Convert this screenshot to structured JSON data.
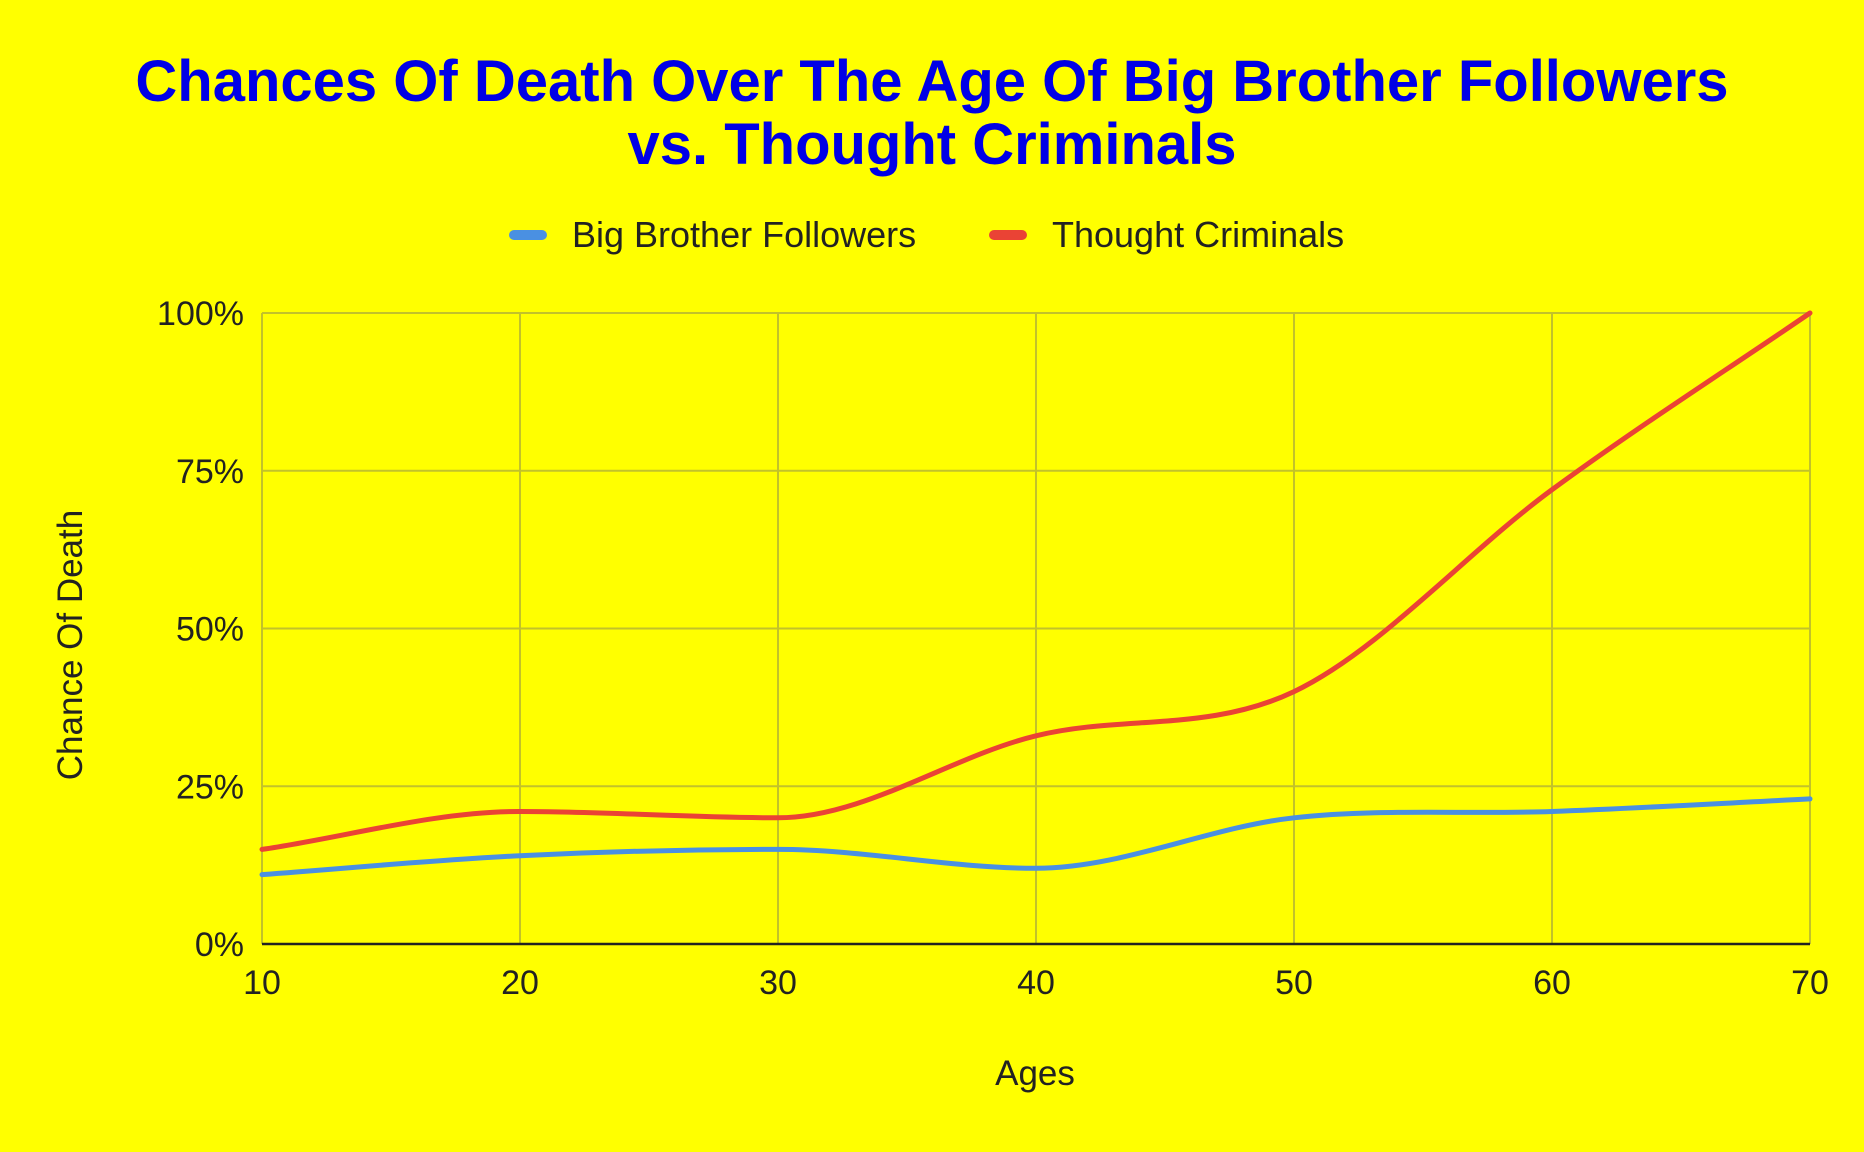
{
  "colors": {
    "background": "#ffff00",
    "title": "#0000e6",
    "text": "#222222",
    "grid": "#c2c22a",
    "axis": "#222222"
  },
  "chart_data": {
    "type": "line",
    "title": [
      "Chances Of Death Over The Age Of Big Brother Followers",
      "vs. Thought Criminals"
    ],
    "xlabel": "Ages",
    "ylabel": "Chance Of Death",
    "x": [
      10,
      20,
      30,
      40,
      50,
      60,
      70
    ],
    "xlim": [
      10,
      70
    ],
    "ylim": [
      0,
      100
    ],
    "x_ticks": [
      10,
      20,
      30,
      40,
      50,
      60,
      70
    ],
    "y_ticks": [
      0,
      25,
      50,
      75,
      100
    ],
    "y_tick_labels": [
      "0%",
      "25%",
      "50%",
      "75%",
      "100%"
    ],
    "grid": true,
    "smooth": true,
    "legend_position": "top",
    "series": [
      {
        "name": "Big Brother Followers",
        "color": "#4a90e2",
        "values": [
          11,
          14,
          15,
          12,
          20,
          21,
          23
        ]
      },
      {
        "name": "Thought Criminals",
        "color": "#ea4335",
        "values": [
          15,
          21,
          20,
          33,
          40,
          72,
          100
        ]
      }
    ]
  }
}
